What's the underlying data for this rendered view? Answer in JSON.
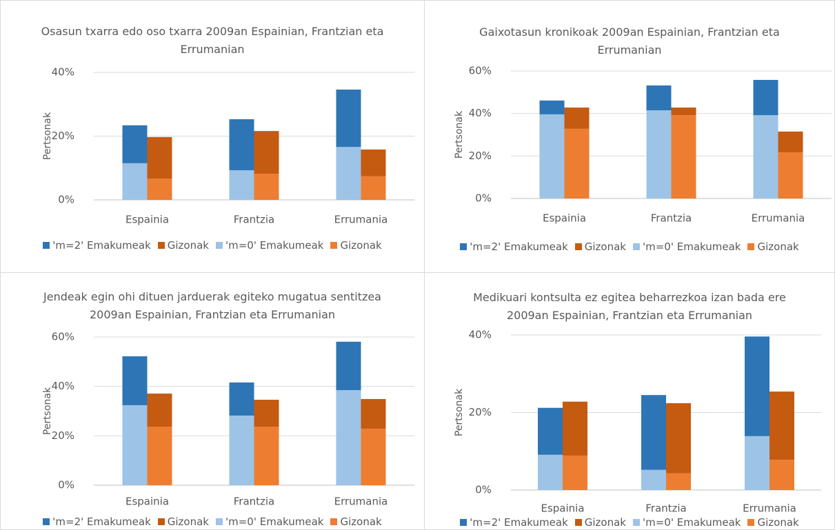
{
  "chart_data": [
    {
      "type": "bar",
      "title": "Osasun txarra edo oso txarra 2009an Espainian, Frantzian eta Errumanian",
      "ylabel": "Pertsonak",
      "categories": [
        "Espainia",
        "Frantzia",
        "Errumania"
      ],
      "series": [
        {
          "name": "'m=2' Emakumeak",
          "color": "#2e75b6",
          "values": [
            11.9,
            16.0,
            18.0
          ]
        },
        {
          "name": "Gizonak",
          "color": "#c55a11",
          "values": [
            13.0,
            13.4,
            8.4
          ]
        },
        {
          "name": "'m=0' Emakumeak",
          "color": "#9dc3e6",
          "values": [
            11.5,
            9.3,
            16.6
          ]
        },
        {
          "name": "Gizonak",
          "color": "#ed7d31",
          "values": [
            6.7,
            8.2,
            7.4
          ]
        }
      ],
      "ylim": [
        0,
        40
      ],
      "yticks": [
        {
          "value": 0,
          "label": "0%"
        },
        {
          "value": 20,
          "label": "20%"
        },
        {
          "value": 40,
          "label": "40%"
        }
      ],
      "grid": true
    },
    {
      "type": "bar",
      "title": "Gaixotasun kronikoak 2009an Espainian, Frantzian eta Errumanian",
      "ylabel": "Pertsonak",
      "categories": [
        "Espainia",
        "Frantzia",
        "Errumania"
      ],
      "series": [
        {
          "name": "'m=2' Emakumeak",
          "color": "#2e75b6",
          "values": [
            6.5,
            11.7,
            16.6
          ]
        },
        {
          "name": "Gizonak",
          "color": "#c55a11",
          "values": [
            10.0,
            3.6,
            9.8
          ]
        },
        {
          "name": "'m=0' Emakumeak",
          "color": "#9dc3e6",
          "values": [
            39.6,
            41.5,
            39.2
          ]
        },
        {
          "name": "Gizonak",
          "color": "#ed7d31",
          "values": [
            32.8,
            39.2,
            21.7
          ]
        }
      ],
      "ylim": [
        0,
        60
      ],
      "yticks": [
        {
          "value": 0,
          "label": "0%"
        },
        {
          "value": 20,
          "label": "20%"
        },
        {
          "value": 40,
          "label": "40%"
        },
        {
          "value": 60,
          "label": "60%"
        }
      ],
      "grid": true
    },
    {
      "type": "bar",
      "title": "Jendeak egin ohi dituen jarduerak egiteko mugatua sentitzea 2009an Espainian, Frantzian eta Errumanian",
      "ylabel": "Pertsonak",
      "categories": [
        "Espainia",
        "Frantzia",
        "Errumania"
      ],
      "series": [
        {
          "name": "'m=2' Emakumeak",
          "color": "#2e75b6",
          "values": [
            19.8,
            13.4,
            19.6
          ]
        },
        {
          "name": "Gizonak",
          "color": "#c55a11",
          "values": [
            13.4,
            10.9,
            12.0
          ]
        },
        {
          "name": "'m=0' Emakumeak",
          "color": "#9dc3e6",
          "values": [
            32.4,
            28.2,
            38.5
          ]
        },
        {
          "name": "Gizonak",
          "color": "#ed7d31",
          "values": [
            23.7,
            23.7,
            22.9
          ]
        }
      ],
      "ylim": [
        0,
        60
      ],
      "yticks": [
        {
          "value": 0,
          "label": "0%"
        },
        {
          "value": 20,
          "label": "20%"
        },
        {
          "value": 40,
          "label": "40%"
        },
        {
          "value": 60,
          "label": "60%"
        }
      ],
      "grid": true
    },
    {
      "type": "bar",
      "title": "Medikuari kontsulta ez egitea beharrezkoa izan bada ere 2009an Espainian, Frantzian eta Errumanian",
      "ylabel": "Pertsonak",
      "categories": [
        "Espainia",
        "Frantzia",
        "Errumania"
      ],
      "series": [
        {
          "name": "'m=2' Emakumeak",
          "color": "#2e75b6",
          "values": [
            12.1,
            19.3,
            25.7
          ]
        },
        {
          "name": "Gizonak",
          "color": "#c55a11",
          "values": [
            13.9,
            18.1,
            17.6
          ]
        },
        {
          "name": "'m=0' Emakumeak",
          "color": "#9dc3e6",
          "values": [
            9.1,
            5.2,
            13.9
          ]
        },
        {
          "name": "Gizonak",
          "color": "#ed7d31",
          "values": [
            8.9,
            4.3,
            7.8
          ]
        }
      ],
      "ylim": [
        0,
        40
      ],
      "yticks": [
        {
          "value": 0,
          "label": "0%"
        },
        {
          "value": 20,
          "label": "20%"
        },
        {
          "value": 40,
          "label": "40%"
        }
      ],
      "grid": true
    }
  ]
}
